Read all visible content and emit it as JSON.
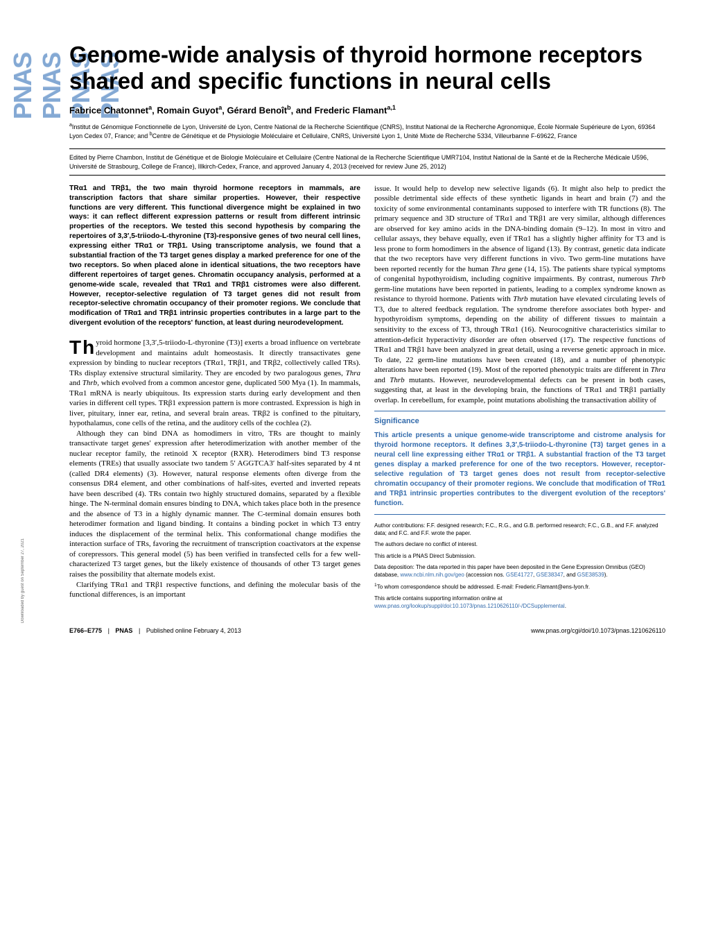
{
  "sidebar_text": "PNAS",
  "download_note": "Downloaded by guest on September 27, 2021",
  "title": "Genome-wide analysis of thyroid hormone receptors shared and specific functions in neural cells",
  "authors_html": "Fabrice Chatonnet<sup>a</sup>, Romain Guyot<sup>a</sup>, Gérard Benoît<sup>b</sup>, and Frederic Flamant<sup>a,1</sup>",
  "affiliations_html": "<sup>a</sup>Institut de Génomique Fonctionnelle de Lyon, Université de Lyon, Centre National de la Recherche Scientifique (CNRS), Institut National de la Recherche Agronomique, École Normale Supérieure de Lyon, 69364 Lyon Cedex 07, France; and <sup>b</sup>Centre de Génétique et de Physiologie Moléculaire et Cellulaire, CNRS, Université Lyon 1, Unité Mixte de Recherche 5334, Villeurbanne F-69622, France",
  "edited_by": "Edited by Pierre Chambon, Institut de Génétique et de Biologie Moléculaire et Cellulaire (Centre National de la Recherche Scientifique UMR7104, Institut National de la Santé et de la Recherche Médicale U596, Université de Strasbourg, College de France), Illkirch-Cedex, France, and approved January 4, 2013 (received for review June 25, 2012)",
  "abstract": "TRα1 and TRβ1, the two main thyroid hormone receptors in mammals, are transcription factors that share similar properties. However, their respective functions are very different. This functional divergence might be explained in two ways: it can reflect different expression patterns or result from different intrinsic properties of the receptors. We tested this second hypothesis by comparing the repertoires of 3,3′,5-triiodo-L-thyronine (T3)-responsive genes of two neural cell lines, expressing either TRα1 or TRβ1. Using transcriptome analysis, we found that a substantial fraction of the T3 target genes display a marked preference for one of the two receptors. So when placed alone in identical situations, the two receptors have different repertoires of target genes. Chromatin occupancy analysis, performed at a genome-wide scale, revealed that TRα1 and TRβ1 cistromes were also different. However, receptor-selective regulation of T3 target genes did not result from receptor-selective chromatin occupancy of their promoter regions. We conclude that modification of TRα1 and TRβ1 intrinsic properties contributes in a large part to the divergent evolution of the receptors' function, at least during neurodevelopment.",
  "body_para1_html": "hyroid hormone [3,3′,5-triiodo-L-thyronine (T3)] exerts a broad influence on vertebrate development and maintains adult homeostasis. It directly transactivates gene expression by binding to nuclear receptors (TRα1, TRβ1, and TRβ2, collectively called TRs). TRs display extensive structural similarity. They are encoded by two paralogous genes, <span class=\"italic\">Thra</span> and <span class=\"italic\">Thrb</span>, which evolved from a common ancestor gene, duplicated 500 Mya (1). In mammals, TRα1 mRNA is nearly ubiquitous. Its expression starts during early development and then varies in different cell types. TRβ1 expression pattern is more contrasted. Expression is high in liver, pituitary, inner ear, retina, and several brain areas. TRβ2 is confined to the pituitary, hypothalamus, cone cells of the retina, and the auditory cells of the cochlea (2).",
  "body_para2_html": "Although they can bind DNA as homodimers in vitro, TRs are thought to mainly transactivate target genes' expression after heterodimerization with another member of the nuclear receptor family, the retinoid X receptor (RXR). Heterodimers bind T3 response elements (TREs) that usually associate two tandem 5′ AGGTCA3′ half-sites separated by 4 nt (called DR4 elements) (3). However, natural response elements often diverge from the consensus DR4 element, and other combinations of half-sites, everted and inverted repeats have been described (4). TRs contain two highly structured domains, separated by a flexible hinge. The N-terminal domain ensures binding to DNA, which takes place both in the presence and the absence of T3 in a highly dynamic manner. The C-terminal domain ensures both heterodimer formation and ligand binding. It contains a binding pocket in which T3 entry induces the displacement of the terminal helix. This conformational change modifies the interaction surface of TRs, favoring the recruitment of transcription coactivators at the expense of corepressors. This general model (5) has been verified in transfected cells for a few well-characterized T3 target genes, but the likely existence of thousands of other T3 target genes raises the possibility that alternate models exist.",
  "body_para3_html": "Clarifying TRα1 and TRβ1 respective functions, and defining the molecular basis of the functional differences, is an important",
  "body_right_html": "issue. It would help to develop new selective ligands (6). It might also help to predict the possible detrimental side effects of these synthetic ligands in heart and brain (7) and the toxicity of some environmental contaminants supposed to interfere with TR functions (8). The primary sequence and 3D structure of TRα1 and TRβ1 are very similar, although differences are observed for key amino acids in the DNA-binding domain (9–12). In most in vitro and cellular assays, they behave equally, even if TRα1 has a slightly higher affinity for T3 and is less prone to form homodimers in the absence of ligand (13). By contrast, genetic data indicate that the two receptors have very different functions in vivo. Two germ-line mutations have been reported recently for the human <span class=\"italic\">Thra</span> gene (14, 15). The patients share typical symptoms of congenital hypothyroidism, including cognitive impairments. By contrast, numerous <span class=\"italic\">Thrb</span> germ-line mutations have been reported in patients, leading to a complex syndrome known as resistance to thyroid hormone. Patients with <span class=\"italic\">Thrb</span> mutation have elevated circulating levels of T3, due to altered feedback regulation. The syndrome therefore associates both hyper- and hypothyroidism symptoms, depending on the ability of different tissues to maintain a sensitivity to the excess of T3, through TRα1 (16). Neurocognitive characteristics similar to attention-deficit hyperactivity disorder are often observed (17). The respective functions of TRα1 and TRβ1 have been analyzed in great detail, using a reverse genetic approach in mice. To date, 22 germ-line mutations have been created (18), and a number of phenotypic alterations have been reported (19). Most of the reported phenotypic traits are different in <span class=\"italic\">Thra</span> and <span class=\"italic\">Thrb</span> mutants. However, neurodevelopmental defects can be present in both cases, suggesting that, at least in the developing brain, the functions of TRα1 and TRβ1 partially overlap. In cerebellum, for example, point mutations abolishing the transactivation ability of",
  "significance": {
    "title": "Significance",
    "text": "This article presents a unique genome-wide transcriptome and cistrome analysis for thyroid hormone receptors. It defines 3,3′,5-triiodo-L-thyronine (T3) target genes in a neural cell line expressing either TRα1 or TRβ1. A substantial fraction of the T3 target genes display a marked preference for one of the two receptors. However, receptor-selective regulation of T3 target genes does not result from receptor-selective chromatin occupancy of their promoter regions. We conclude that modification of TRα1 and TRβ1 intrinsic properties contributes to the divergent evolution of the receptors' function."
  },
  "footnotes": {
    "contributions": "Author contributions: F.F. designed research; F.C., R.G., and G.B. performed research; F.C., G.B., and F.F. analyzed data; and F.C. and F.F. wrote the paper.",
    "conflict": "The authors declare no conflict of interest.",
    "submission": "This article is a PNAS Direct Submission.",
    "data_deposition_html": "Data deposition: The data reported in this paper have been deposited in the Gene Expression Omnibus (GEO) database, <a href=\"#\">www.ncbi.nlm.nih.gov/geo</a> (accession nos. <a href=\"#\">GSE41727</a>, <a href=\"#\">GSE38347</a>, and <a href=\"#\">GSE38539</a>).",
    "correspondence_html": "<sup>1</sup>To whom correspondence should be addressed. E-mail: Frederic.Flamant@ens-lyon.fr.",
    "supporting_html": "This article contains supporting information online at <a href=\"#\">www.pnas.org/lookup/suppl/doi:10.1073/pnas.1210626110/-/DCSupplemental</a>."
  },
  "footer": {
    "pages": "E766–E775",
    "journal": "PNAS",
    "published": "Published online February 4, 2013",
    "doi": "www.pnas.org/cgi/doi/10.1073/pnas.1210626110"
  },
  "colors": {
    "pnas_blue": "#326aab",
    "sidebar_blue": "#84a9d4",
    "text": "#000000",
    "background": "#ffffff"
  },
  "typography": {
    "title_fontsize": 33,
    "authors_fontsize": 13,
    "affiliations_fontsize": 9,
    "body_fontsize": 11,
    "abstract_fontsize": 10.3,
    "significance_fontsize": 10,
    "footnote_fontsize": 8,
    "footer_fontsize": 9
  }
}
